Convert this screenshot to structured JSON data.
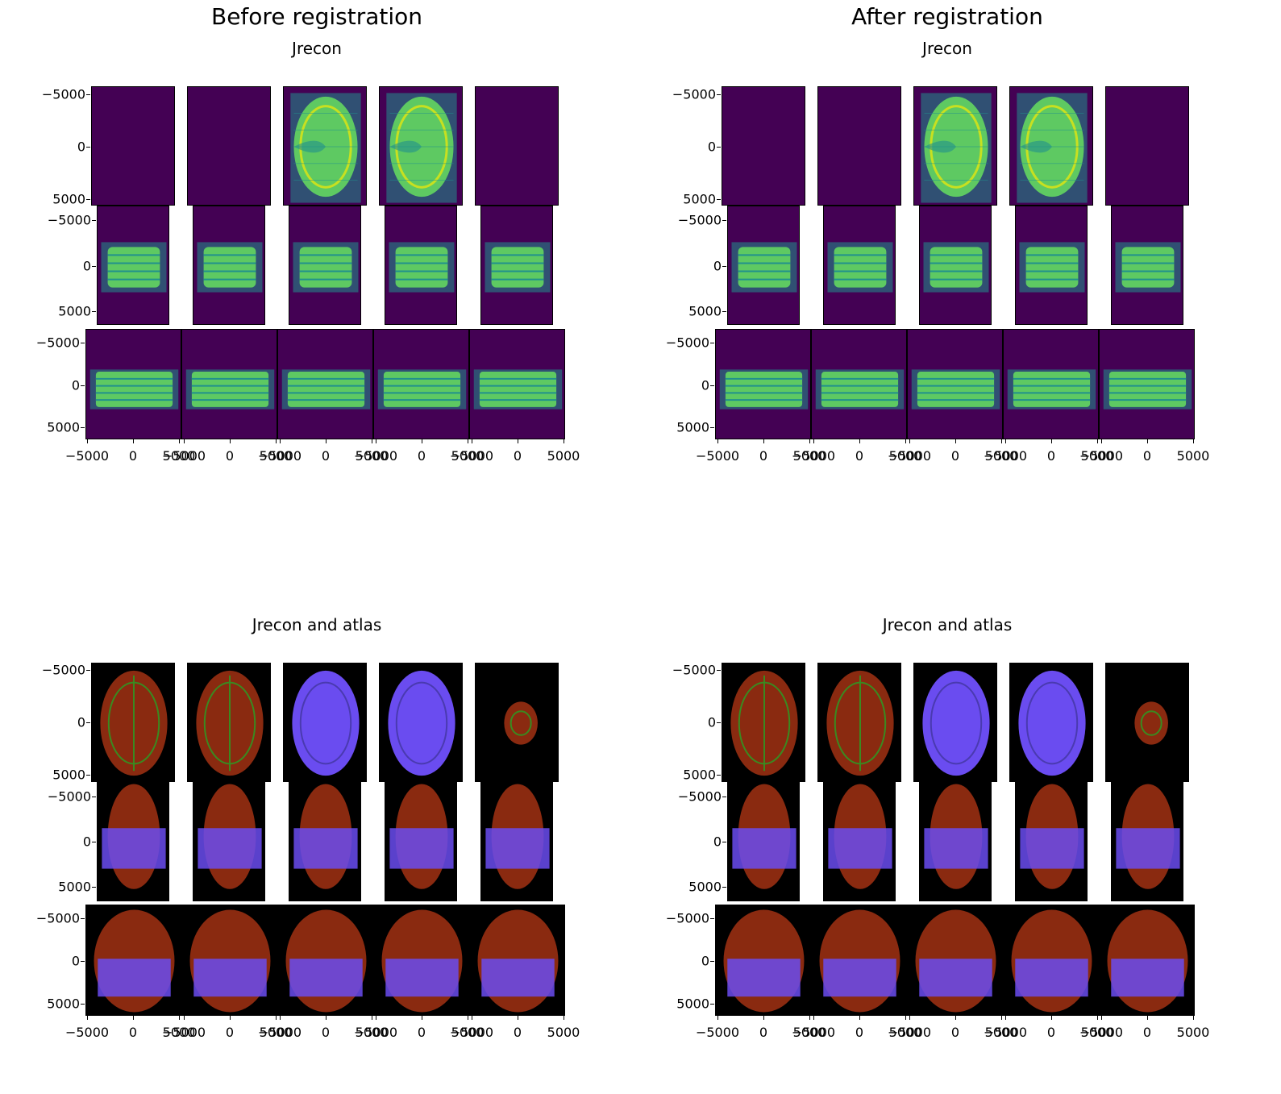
{
  "figure": {
    "suptitles": [
      "Before registration",
      "After registration"
    ],
    "titles": {
      "top": "Jrecon",
      "bottom": "Jrecon and atlas"
    },
    "ytick_labels": [
      "−5000",
      "0",
      "5000"
    ],
    "xtick_labels": [
      "−5000",
      "0",
      "5000"
    ],
    "colors": {
      "viridis_bg": "#440154",
      "viridis_mid": "#21918c",
      "viridis_hi": "#5ec962",
      "viridis_top": "#c8e020",
      "overlay_bg": "#000000",
      "atlas_red": "#8a2a10",
      "jrecon_blue": "#6a4cf0"
    }
  }
}
